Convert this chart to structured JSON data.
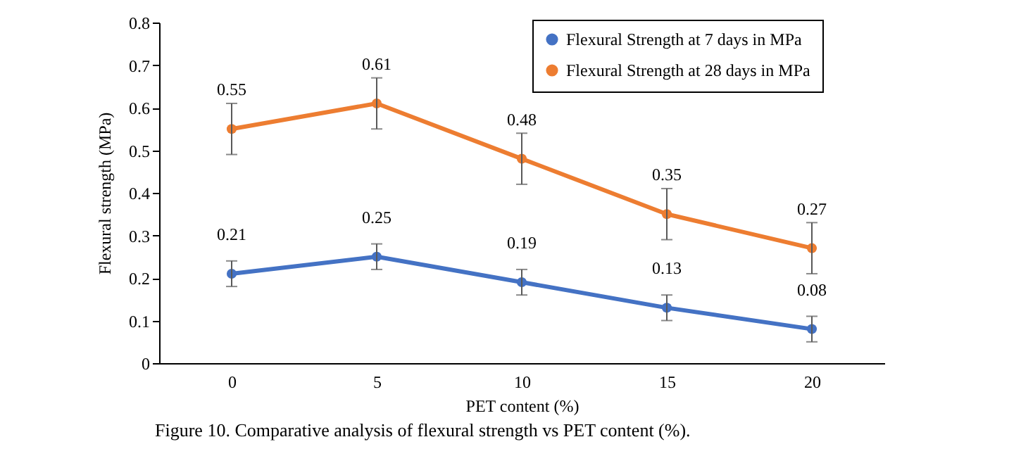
{
  "chart_data": {
    "type": "line",
    "xlabel": "PET content (%)",
    "ylabel": "Flexural strength (MPa)",
    "categories": [
      "0",
      "5",
      "10",
      "15",
      "20"
    ],
    "series": [
      {
        "name": "Flexural Strength at 7 days in MPa",
        "color": "#4472c4",
        "values": [
          0.21,
          0.25,
          0.19,
          0.13,
          0.08
        ],
        "errors": [
          0.03,
          0.03,
          0.03,
          0.03,
          0.03
        ]
      },
      {
        "name": "Flexural Strength at 28 days in MPa",
        "color": "#ed7d31",
        "values": [
          0.55,
          0.61,
          0.48,
          0.35,
          0.27
        ],
        "errors": [
          0.06,
          0.06,
          0.06,
          0.06,
          0.06
        ]
      }
    ],
    "ylim": [
      0,
      0.8
    ],
    "yticks": [
      0,
      0.1,
      0.2,
      0.3,
      0.4,
      0.5,
      0.6,
      0.7,
      0.8
    ],
    "data_labels": true,
    "grid": false,
    "legend": "top right",
    "marker": "circle",
    "line_style": "solid",
    "annotations": [
      "Figure 10. Comparative analysis of flexural strength vs PET content (%)."
    ]
  }
}
